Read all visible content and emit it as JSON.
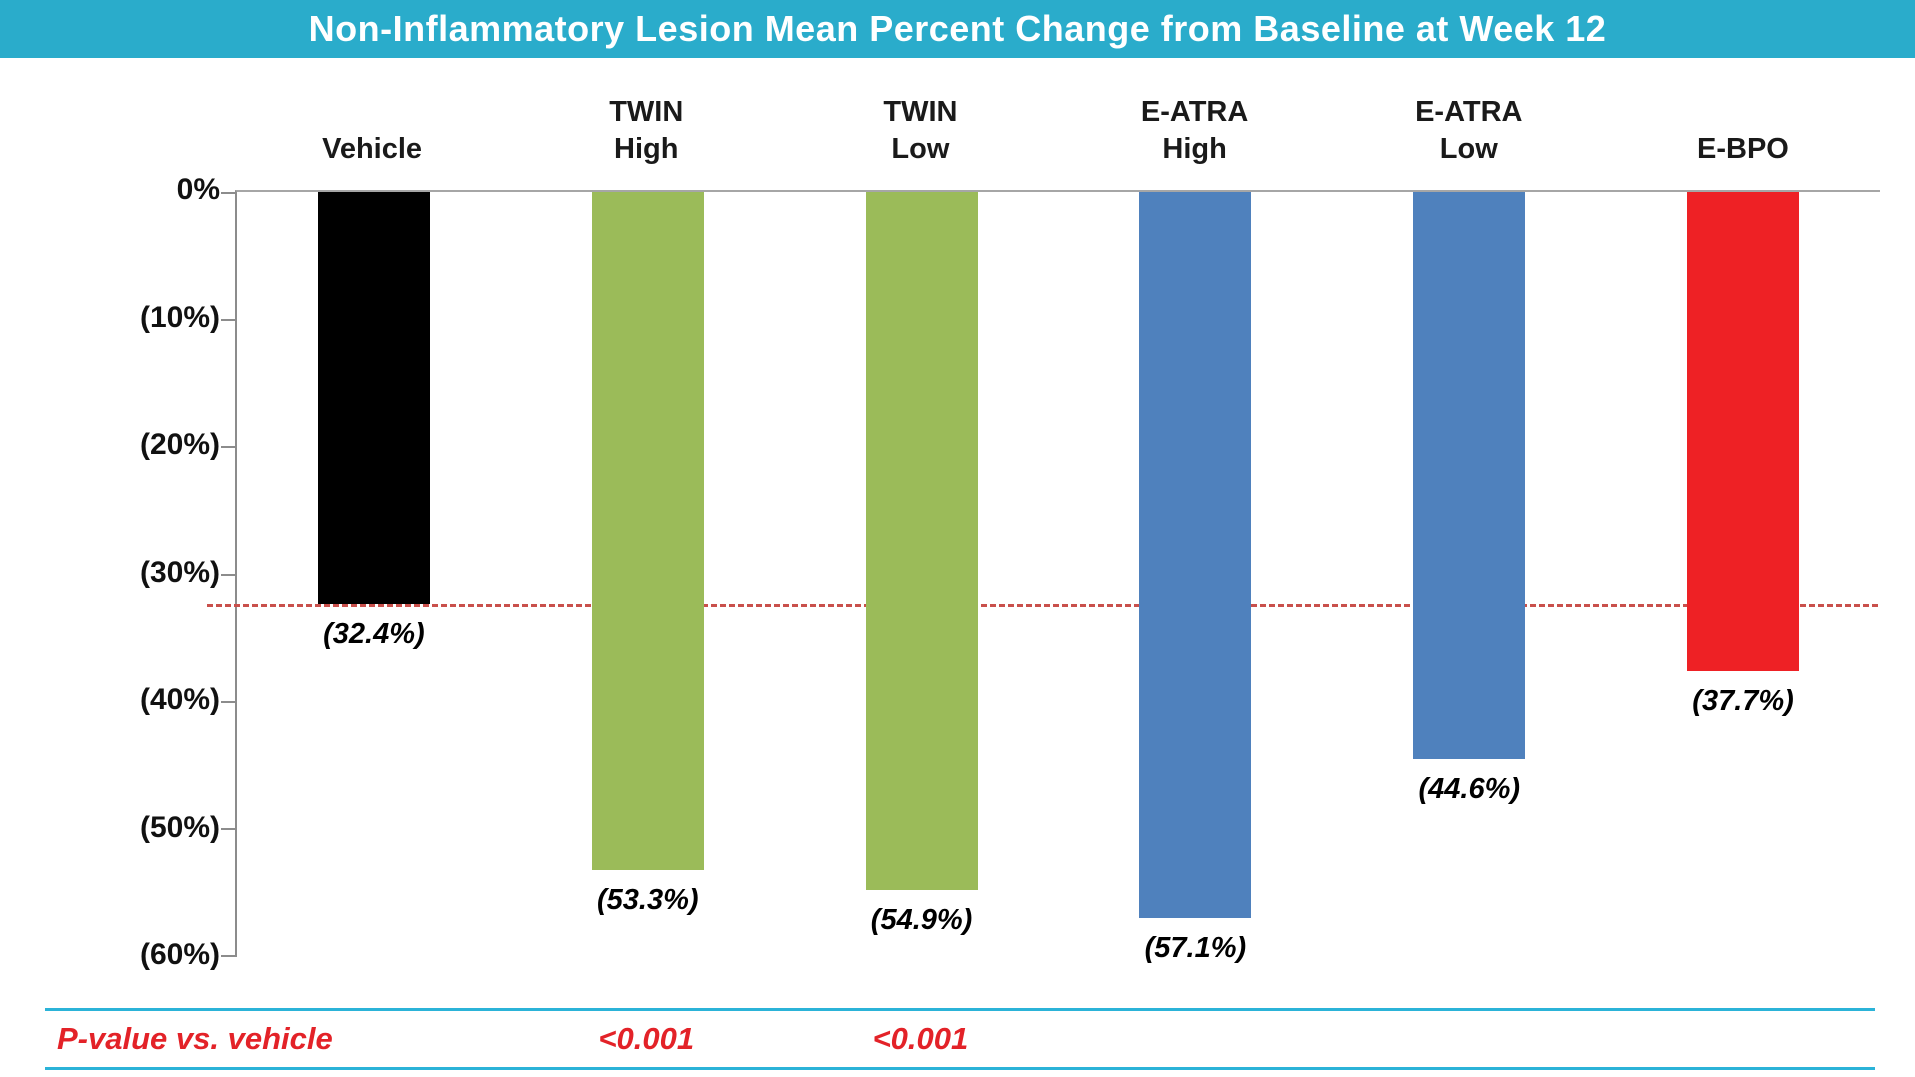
{
  "colors": {
    "title_bg": "#2aaccb",
    "title_text": "#ffffff"
  },
  "chart_data": {
    "type": "bar",
    "title": "Non-Inflammatory Lesion Mean Percent Change from Baseline at Week 12",
    "categories": [
      "Vehicle",
      "TWIN\nHigh",
      "TWIN\nLow",
      "E-ATRA\nHigh",
      "E-ATRA\nLow",
      "E-BPO"
    ],
    "values": [
      -32.4,
      -53.3,
      -54.9,
      -57.1,
      -44.6,
      -37.7
    ],
    "bar_labels": [
      "(32.4%)",
      "(53.3%)",
      "(54.9%)",
      "(57.1%)",
      "(44.6%)",
      "(37.7%)"
    ],
    "bar_colors": [
      "#000000",
      "#9bbb59",
      "#9bbb59",
      "#4f81bd",
      "#4f81bd",
      "#ee2125"
    ],
    "ylim": [
      -60,
      0
    ],
    "yticks": [
      0,
      -10,
      -20,
      -30,
      -40,
      -50,
      -60
    ],
    "ytick_labels": [
      "0%",
      "(10%)",
      "(20%)",
      "(30%)",
      "(40%)",
      "(50%)",
      "(60%)"
    ],
    "reference_line": {
      "value": -32.4,
      "color": "#c9504c",
      "style": "dashed"
    },
    "grid": false,
    "legend": "none",
    "xlabel": "",
    "ylabel": ""
  },
  "pvalue_row": {
    "label": "P-value vs. vehicle",
    "values": [
      "",
      "<0.001",
      "<0.001",
      "",
      "",
      ""
    ],
    "text_color": "#e32228",
    "border_color": "#2bb3d8"
  }
}
